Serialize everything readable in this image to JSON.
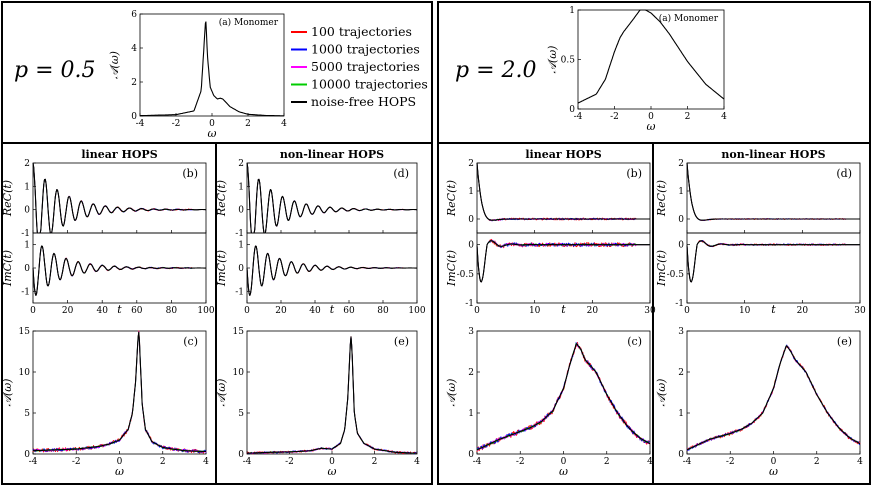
{
  "figure": {
    "left_p_label": "p = 0.5",
    "right_p_label": "p = 2.0",
    "legend": [
      {
        "label": "100 trajectories",
        "color": "#ff0000"
      },
      {
        "label": "1000 trajectories",
        "color": "#0000ff"
      },
      {
        "label": "5000 trajectories",
        "color": "#ff00ff"
      },
      {
        "label": "10000 trajectories",
        "color": "#00cc00"
      },
      {
        "label": "noise-free HOPS",
        "color": "#000000"
      }
    ]
  },
  "chart_data": [
    {
      "id": "mono-left",
      "type": "line",
      "annotation": "(a) Monomer",
      "xlabel": "ω",
      "ylabel": "𝒜(ω)",
      "xlim": [
        -4,
        4
      ],
      "xticks": [
        -4,
        -2,
        0,
        2,
        4
      ],
      "ylim": [
        0,
        6
      ],
      "yticks": [
        0,
        2,
        4,
        6
      ],
      "series": [
        {
          "name": "noise-free HOPS",
          "x": [
            -4,
            -2,
            -1,
            -0.6,
            -0.45,
            -0.35,
            -0.25,
            -0.1,
            0.1,
            0.3,
            0.45,
            0.6,
            1,
            1.5,
            2,
            3,
            4
          ],
          "y": [
            0.02,
            0.08,
            0.3,
            1.5,
            4.0,
            5.8,
            3.5,
            1.7,
            1.2,
            1.0,
            1.05,
            1.0,
            0.55,
            0.25,
            0.1,
            0.03,
            0.01
          ]
        }
      ]
    },
    {
      "id": "mono-right",
      "type": "line",
      "annotation": "(a) Monomer",
      "xlabel": "ω",
      "ylabel": "𝒜(ω)",
      "xlim": [
        -4,
        4
      ],
      "xticks": [
        -4,
        -2,
        0,
        2,
        4
      ],
      "ylim": [
        0,
        1
      ],
      "yticks": [
        0,
        0.5,
        1
      ],
      "series": [
        {
          "name": "noise-free HOPS",
          "x": [
            -4,
            -3,
            -2.5,
            -2,
            -1.7,
            -1.5,
            -1,
            -0.6,
            -0.3,
            0,
            0.5,
            1,
            1.5,
            2,
            3,
            4
          ],
          "y": [
            0.06,
            0.15,
            0.3,
            0.58,
            0.72,
            0.78,
            0.9,
            1.0,
            1.0,
            0.97,
            0.88,
            0.76,
            0.62,
            0.48,
            0.25,
            0.1
          ]
        }
      ]
    },
    {
      "id": "b-left",
      "type": "line",
      "title": "linear HOPS",
      "annotation": "(b)",
      "xlabel": "t",
      "xlim": [
        0,
        100
      ],
      "xticks": [
        0,
        20,
        40,
        60,
        80,
        100
      ],
      "top": {
        "ylabel": "ReC(t)",
        "ylim": [
          -1,
          2
        ],
        "yticks": [
          -1,
          0,
          1,
          2
        ]
      },
      "bottom": {
        "ylabel": "ImC(t)",
        "ylim": [
          -1.5,
          1.5
        ],
        "yticks": [
          -1,
          0,
          1
        ]
      },
      "series": [
        {
          "name": "Re C(t) noise-free",
          "model": {
            "amp": 2.0,
            "omega": 0.9,
            "decay": 0.06,
            "phase": "cos"
          }
        },
        {
          "name": "Im C(t) noise-free",
          "model": {
            "amp": -1.3,
            "omega": 0.9,
            "decay": 0.06,
            "phase": "sin"
          }
        }
      ],
      "noise": {
        "amp": 0.05,
        "start": 15
      }
    },
    {
      "id": "d-left",
      "type": "line",
      "title": "non-linear HOPS",
      "annotation": "(d)",
      "xlabel": "t",
      "xlim": [
        0,
        100
      ],
      "xticks": [
        0,
        20,
        40,
        60,
        80,
        100
      ],
      "top": {
        "ylabel": "ReC(t)",
        "ylim": [
          -1,
          2
        ],
        "yticks": [
          -1,
          0,
          1,
          2
        ]
      },
      "bottom": {
        "ylabel": "ImC(t)",
        "ylim": [
          -1.5,
          1.5
        ],
        "yticks": [
          -1,
          0,
          1
        ]
      },
      "series": [
        {
          "name": "Re C(t) noise-free",
          "model": {
            "amp": 2.0,
            "omega": 0.9,
            "decay": 0.06,
            "phase": "cos"
          }
        },
        {
          "name": "Im C(t) noise-free",
          "model": {
            "amp": -1.3,
            "omega": 0.9,
            "decay": 0.06,
            "phase": "sin"
          }
        }
      ],
      "noise": {
        "amp": 0.03,
        "start": 15
      }
    },
    {
      "id": "b-right",
      "type": "line",
      "title": "linear HOPS",
      "annotation": "(b)",
      "xlabel": "t",
      "xlim": [
        0,
        30
      ],
      "xticks": [
        0,
        10,
        20,
        30
      ],
      "top": {
        "ylabel": "ReC(t)",
        "ylim": [
          -0.5,
          2
        ],
        "yticks": [
          0,
          1,
          2
        ]
      },
      "bottom": {
        "ylabel": "ImC(t)",
        "ylim": [
          -1,
          0.2
        ],
        "yticks": [
          -1,
          -0.5,
          0
        ]
      },
      "series": [
        {
          "name": "Re C(t) noise-free",
          "model": {
            "amp": 2.0,
            "omega": 0.8,
            "decay": 1.2,
            "phase": "cos"
          }
        },
        {
          "name": "Im C(t) noise-free",
          "model": {
            "amp": -0.95,
            "omega": 0.8,
            "decay": 0.5,
            "phase": "imshape"
          }
        }
      ],
      "noise": {
        "amp": 0.07,
        "start": 2
      }
    },
    {
      "id": "d-right",
      "type": "line",
      "title": "non-linear HOPS",
      "annotation": "(d)",
      "xlabel": "t",
      "xlim": [
        0,
        30
      ],
      "xticks": [
        0,
        10,
        20,
        30
      ],
      "top": {
        "ylabel": "ReC(t)",
        "ylim": [
          -0.5,
          2
        ],
        "yticks": [
          0,
          1,
          2
        ]
      },
      "bottom": {
        "ylabel": "ImC(t)",
        "ylim": [
          -1,
          0.2
        ],
        "yticks": [
          -1,
          -0.5,
          0
        ]
      },
      "series": [
        {
          "name": "Re C(t) noise-free",
          "model": {
            "amp": 2.0,
            "omega": 0.8,
            "decay": 1.2,
            "phase": "cos"
          }
        },
        {
          "name": "Im C(t) noise-free",
          "model": {
            "amp": -0.95,
            "omega": 0.8,
            "decay": 0.5,
            "phase": "imshape"
          }
        }
      ],
      "noise": {
        "amp": 0.03,
        "start": 2
      }
    },
    {
      "id": "c-left",
      "type": "line",
      "annotation": "(c)",
      "xlabel": "ω",
      "ylabel": "𝒜(ω)",
      "xlim": [
        -4,
        4
      ],
      "xticks": [
        -4,
        -2,
        0,
        2,
        4
      ],
      "ylim": [
        0,
        15
      ],
      "yticks": [
        0,
        5,
        10,
        15
      ],
      "series": [
        {
          "name": "noise-free HOPS",
          "x": [
            -4,
            -3,
            -2,
            -1,
            -0.5,
            0,
            0.4,
            0.6,
            0.75,
            0.85,
            0.9,
            0.95,
            1.05,
            1.2,
            1.5,
            2,
            3,
            4
          ],
          "y": [
            0.4,
            0.5,
            0.6,
            0.9,
            1.2,
            1.7,
            3.0,
            5.0,
            9.0,
            14.0,
            15.0,
            12.0,
            6.0,
            3.0,
            1.5,
            0.8,
            0.4,
            0.3
          ]
        }
      ],
      "noise": {
        "amp": 0.45
      }
    },
    {
      "id": "e-left",
      "type": "line",
      "annotation": "(e)",
      "xlabel": "ω",
      "ylabel": "𝒜(ω)",
      "xlim": [
        -4,
        4
      ],
      "xticks": [
        -4,
        -2,
        0,
        2,
        4
      ],
      "ylim": [
        0,
        15
      ],
      "yticks": [
        0,
        5,
        10,
        15
      ],
      "series": [
        {
          "name": "noise-free HOPS",
          "x": [
            -4,
            -3,
            -2,
            -1,
            -0.5,
            0,
            0.4,
            0.6,
            0.75,
            0.85,
            0.9,
            0.95,
            1.05,
            1.2,
            1.5,
            2,
            3,
            4
          ],
          "y": [
            0.1,
            0.2,
            0.25,
            0.4,
            0.7,
            0.6,
            1.3,
            3.0,
            7.0,
            13.0,
            14.5,
            12.0,
            5.0,
            2.5,
            1.3,
            0.6,
            0.2,
            0.1
          ]
        }
      ],
      "noise": {
        "amp": 0.25
      }
    },
    {
      "id": "c-right",
      "type": "line",
      "annotation": "(c)",
      "xlabel": "ω",
      "ylabel": "𝒜(ω)",
      "xlim": [
        -4,
        4
      ],
      "xticks": [
        -4,
        -2,
        0,
        2,
        4
      ],
      "ylim": [
        0,
        3
      ],
      "yticks": [
        0,
        1,
        2,
        3
      ],
      "series": [
        {
          "name": "noise-free HOPS",
          "x": [
            -4,
            -3,
            -2,
            -1.5,
            -1,
            -0.5,
            0,
            0.3,
            0.6,
            0.8,
            1,
            1.5,
            2,
            2.5,
            3,
            3.5,
            4
          ],
          "y": [
            0.1,
            0.35,
            0.55,
            0.65,
            0.8,
            1.05,
            1.6,
            2.2,
            2.7,
            2.55,
            2.3,
            2.0,
            1.45,
            1.0,
            0.65,
            0.4,
            0.25
          ]
        }
      ],
      "noise": {
        "amp": 0.12
      }
    },
    {
      "id": "e-right",
      "type": "line",
      "annotation": "(e)",
      "xlabel": "ω",
      "ylabel": "𝒜(ω)",
      "xlim": [
        -4,
        4
      ],
      "xticks": [
        -4,
        -2,
        0,
        2,
        4
      ],
      "ylim": [
        0,
        3
      ],
      "yticks": [
        0,
        1,
        2,
        3
      ],
      "series": [
        {
          "name": "noise-free HOPS",
          "x": [
            -4,
            -3,
            -2,
            -1.5,
            -1,
            -0.5,
            0,
            0.3,
            0.6,
            0.8,
            1,
            1.5,
            2,
            2.5,
            3,
            3.5,
            4
          ],
          "y": [
            0.1,
            0.35,
            0.5,
            0.6,
            0.75,
            1.0,
            1.6,
            2.2,
            2.65,
            2.5,
            2.3,
            2.0,
            1.45,
            1.0,
            0.65,
            0.4,
            0.25
          ]
        }
      ],
      "noise": {
        "amp": 0.08
      }
    }
  ]
}
